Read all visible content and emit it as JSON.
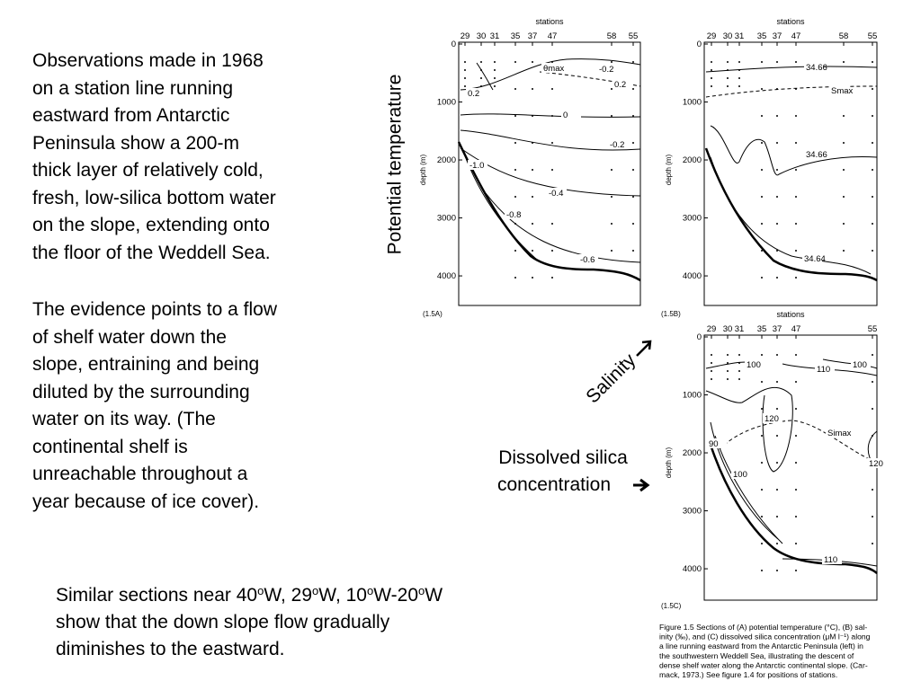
{
  "left_text": {
    "paragraph1": [
      "Observations made in 1968",
      "on a station line running",
      "eastward from Antarctic",
      "Peninsula show a 200-m",
      "thick layer of relatively cold,",
      "fresh, low-silica bottom water",
      "on the slope, extending onto",
      "the floor of the Weddell Sea."
    ],
    "paragraph2": [
      "The evidence points to a flow",
      "of shelf water down the",
      "slope, entraining and being",
      "diluted by the surrounding",
      "water on its way. (The",
      "continental shelf is",
      "unreachable throughout a",
      "year because of ice cover)."
    ]
  },
  "labels": {
    "potential_temperature": "Potential temperature",
    "salinity": "Salinity",
    "silica": [
      "Dissolved silica",
      "concentration"
    ]
  },
  "bottom_text": {
    "line1": [
      "Similar sections near 40",
      "o",
      "W, 29",
      "o",
      "W, 10",
      "o",
      "W-20",
      "o",
      "W"
    ],
    "line2": "show that the down slope flow gradually",
    "line3": "diminishes to the eastward."
  },
  "figure": {
    "panels": [
      {
        "label": "(1.5A)",
        "axis_title": "stations",
        "stations": [
          "29",
          "30",
          "31",
          "35",
          "37",
          "47",
          "58",
          "55"
        ],
        "depth_label": "depth (m)",
        "depth_ticks": [
          0,
          1000,
          2000,
          3000,
          4000
        ],
        "contours": [
          "0.2",
          "θmax",
          "-0.2",
          "0.2",
          "0",
          "-0.2",
          "-1.0",
          "-0.4",
          "-0.8",
          "-0.6"
        ]
      },
      {
        "label": "(1.5B)",
        "axis_title": "stations",
        "stations": [
          "29",
          "30",
          "31",
          "35",
          "37",
          "47",
          "58",
          "55"
        ],
        "depth_label": "depth (m)",
        "depth_ticks": [
          0,
          1000,
          2000,
          3000,
          4000
        ],
        "contours": [
          "34.66",
          "Smax",
          "34.66",
          "34.64"
        ]
      },
      {
        "label": "(1.5C)",
        "axis_title": "stations",
        "stations": [
          "29",
          "30",
          "31",
          "35",
          "37",
          "47",
          "55"
        ],
        "depth_label": "depth (m)",
        "depth_ticks": [
          0,
          1000,
          2000,
          3000,
          4000
        ],
        "contours": [
          "100",
          "110",
          "100",
          "120",
          "Simax",
          "90",
          "100",
          "120",
          "110"
        ]
      }
    ],
    "caption": [
      "Figure 1.5  Sections of (A) potential temperature (°C), (B) sal-",
      "inity (‰), and (C) dissolved silica concentration (μM l⁻¹) along",
      "a line running eastward from the Antarctic Peninsula (left) in",
      "the southwestern Weddell Sea, illustrating the descent of",
      "dense shelf water along the Antarctic continental slope. (Car-",
      "mack, 1973.) See figure 1.4 for positions of stations."
    ]
  }
}
